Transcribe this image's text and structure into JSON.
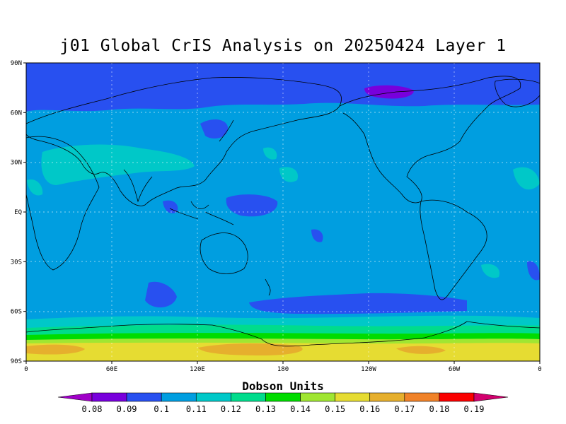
{
  "title": "j01 Global CrIS Analysis on 20250424 Layer 1",
  "map": {
    "lon_ticks": [
      "0",
      "60E",
      "120E",
      "180",
      "120W",
      "60W",
      "0"
    ],
    "lat_ticks": [
      "90N",
      "60N",
      "30N",
      "EQ",
      "30S",
      "60S",
      "90S"
    ],
    "gridlines": true,
    "projection": "equirectangular, centred on 180"
  },
  "colorbar": {
    "title": "Dobson Units",
    "labels": [
      "0.08",
      "0.09",
      "0.1",
      "0.11",
      "0.12",
      "0.13",
      "0.14",
      "0.15",
      "0.16",
      "0.17",
      "0.18",
      "0.19"
    ],
    "colors": [
      "#a000c8",
      "#7800dc",
      "#2850f0",
      "#009ee0",
      "#00c8c8",
      "#00dc8c",
      "#00dc00",
      "#a0e632",
      "#e6dc32",
      "#e6af2d",
      "#f08228",
      "#fa0000",
      "#d2006e"
    ]
  },
  "fields": {
    "background": "#009ee0",
    "polar_north": "#2850f0",
    "purple_patch": "#7800dc",
    "cyan_patch": "#00c8c8",
    "teal_patch": "#00dc8c",
    "green_band": "#00dc00",
    "lime_band": "#a0e632",
    "yellow_band": "#e6dc32",
    "orange_band": "#e6af2d"
  }
}
